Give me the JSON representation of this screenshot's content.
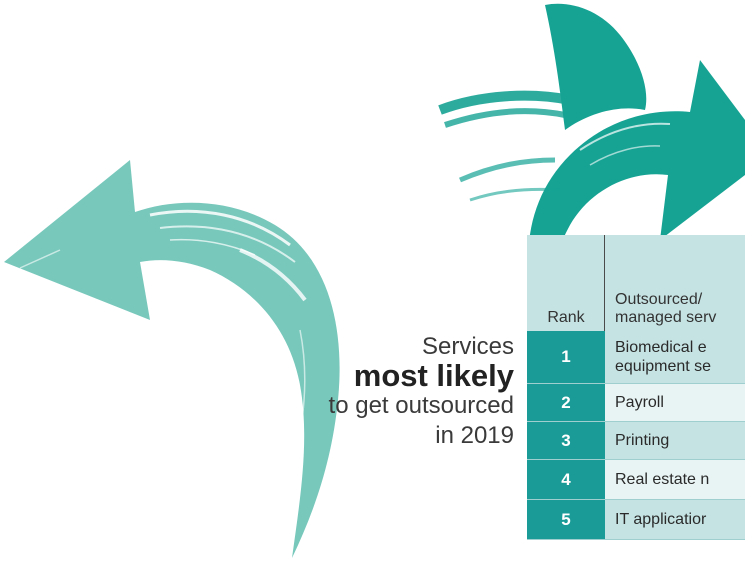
{
  "headline": {
    "line1": "Services",
    "line2": "most likely",
    "line3": "to get outsourced",
    "line4": "in 2019"
  },
  "table": {
    "header_rank": "Rank",
    "header_service": "Outsourced/\nmanaged serv",
    "rows": [
      {
        "rank": "1",
        "service": "Biomedical e\nequipment se"
      },
      {
        "rank": "2",
        "service": "Payroll"
      },
      {
        "rank": "3",
        "service": "Printing"
      },
      {
        "rank": "4",
        "service": "Real estate n"
      },
      {
        "rank": "5",
        "service": "IT applicatior"
      }
    ]
  },
  "colors": {
    "left_arrow": "#78c8bc",
    "right_arrow": "#16a394",
    "rank_cell": "#1a9b97",
    "header_bg": "#c6e3e3"
  },
  "icons": {
    "left_arrow": "curved-arrow-left-icon",
    "right_arrow": "curved-arrow-right-icon"
  }
}
